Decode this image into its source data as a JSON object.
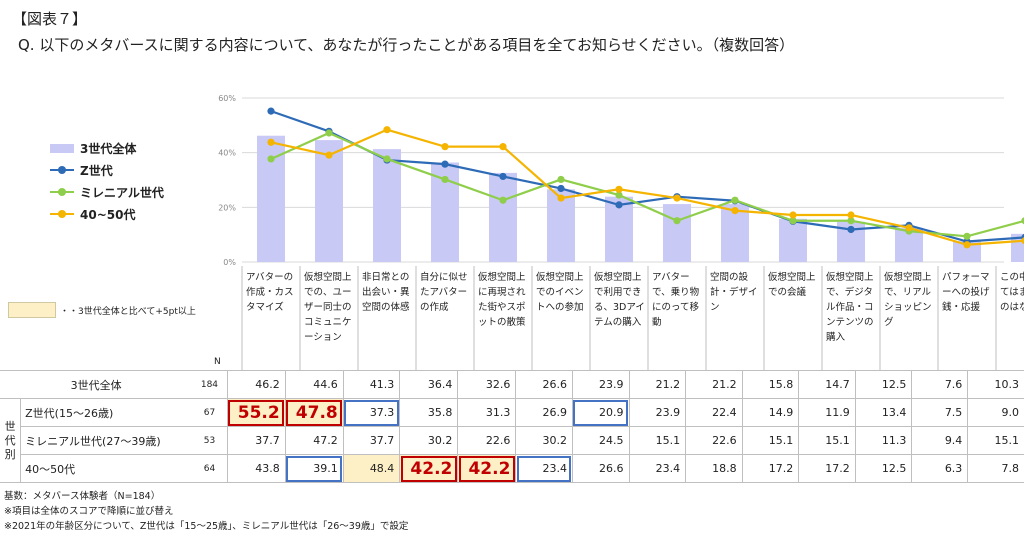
{
  "header": {
    "tag": "【図表７】",
    "question": "Q. 以下のメタバースに関する内容について、あなたが行ったことがある項目を全てお知らせください。（複数回答）"
  },
  "legend_note": "・・3世代全体と比べて+5pt以上",
  "n_label": "N",
  "generation_label": "世代別",
  "colors": {
    "bar": "#c9c9f5",
    "z": "#2e6bb7",
    "millennial": "#8fce4a",
    "forties": "#f4b400",
    "grid": "#d9d9d9"
  },
  "chart_data": {
    "type": "bar",
    "categories": [
      "アバターの作成・カスタマイズ",
      "仮想空間上での、ユーザー同士のコミュニケーション",
      "非日常との出会い・異空間の体感",
      "自分に似せたアバターの作成",
      "仮想空間上に再現された街やスポットの散策",
      "仮想空間上でのイベントへの参加",
      "仮想空間上で利用できる、3Dアイテムの購入",
      "アバターで、乗り物にのって移動",
      "空間の設計・デザイン",
      "仮想空間上での会議",
      "仮想空間上で、デジタル作品・コンテンツの購入",
      "仮想空間上で、リアルショッピング",
      "パフォーマーへの投げ銭・応援",
      "この中にあてはまるものはない"
    ],
    "ylim": [
      0,
      60
    ],
    "yticks": [
      "0%",
      "20%",
      "40%",
      "60%"
    ],
    "series": [
      {
        "name": "3世代全体",
        "kind": "bar",
        "values": [
          46.2,
          44.6,
          41.3,
          36.4,
          32.6,
          26.6,
          23.9,
          21.2,
          21.2,
          15.8,
          14.7,
          12.5,
          7.6,
          10.3
        ]
      },
      {
        "name": "Z世代",
        "kind": "line",
        "values": [
          55.2,
          47.8,
          37.3,
          35.8,
          31.3,
          26.9,
          20.9,
          23.9,
          22.4,
          14.9,
          11.9,
          13.4,
          7.5,
          9.0
        ]
      },
      {
        "name": "ミレニアル世代",
        "kind": "line",
        "values": [
          37.7,
          47.2,
          37.7,
          30.2,
          22.6,
          30.2,
          24.5,
          15.1,
          22.6,
          15.1,
          15.1,
          11.3,
          9.4,
          15.1
        ]
      },
      {
        "name": "40~50代",
        "kind": "line",
        "values": [
          43.8,
          39.1,
          48.4,
          42.2,
          42.2,
          23.4,
          26.6,
          23.4,
          18.8,
          17.2,
          17.2,
          12.5,
          6.3,
          7.8
        ]
      }
    ]
  },
  "table": {
    "rows": [
      {
        "label": "3世代全体",
        "n": "184",
        "values": [
          "46.2",
          "44.6",
          "41.3",
          "36.4",
          "32.6",
          "26.6",
          "23.9",
          "21.2",
          "21.2",
          "15.8",
          "14.7",
          "12.5",
          "7.6",
          "10.3"
        ]
      },
      {
        "label": "Z世代(15～26歳)",
        "n": "67",
        "values": [
          "55.2",
          "47.8",
          "37.3",
          "35.8",
          "31.3",
          "26.9",
          "20.9",
          "23.9",
          "22.4",
          "14.9",
          "11.9",
          "13.4",
          "7.5",
          "9.0"
        ]
      },
      {
        "label": "ミレニアル世代(27～39歳)",
        "n": "53",
        "values": [
          "37.7",
          "47.2",
          "37.7",
          "30.2",
          "22.6",
          "30.2",
          "24.5",
          "15.1",
          "22.6",
          "15.1",
          "15.1",
          "11.3",
          "9.4",
          "15.1"
        ]
      },
      {
        "label": "40～50代",
        "n": "64",
        "values": [
          "43.8",
          "39.1",
          "48.4",
          "42.2",
          "42.2",
          "23.4",
          "26.6",
          "23.4",
          "18.8",
          "17.2",
          "17.2",
          "12.5",
          "6.3",
          "7.8"
        ]
      }
    ]
  },
  "footnotes": [
    "基数：メタバース体験者（N=184）",
    "※項目は全体のスコアで降順に並び替え",
    "※2021年の年齢区分について、Z世代は「15～25歳」、ミレニアル世代は「26～39歳」で設定"
  ]
}
